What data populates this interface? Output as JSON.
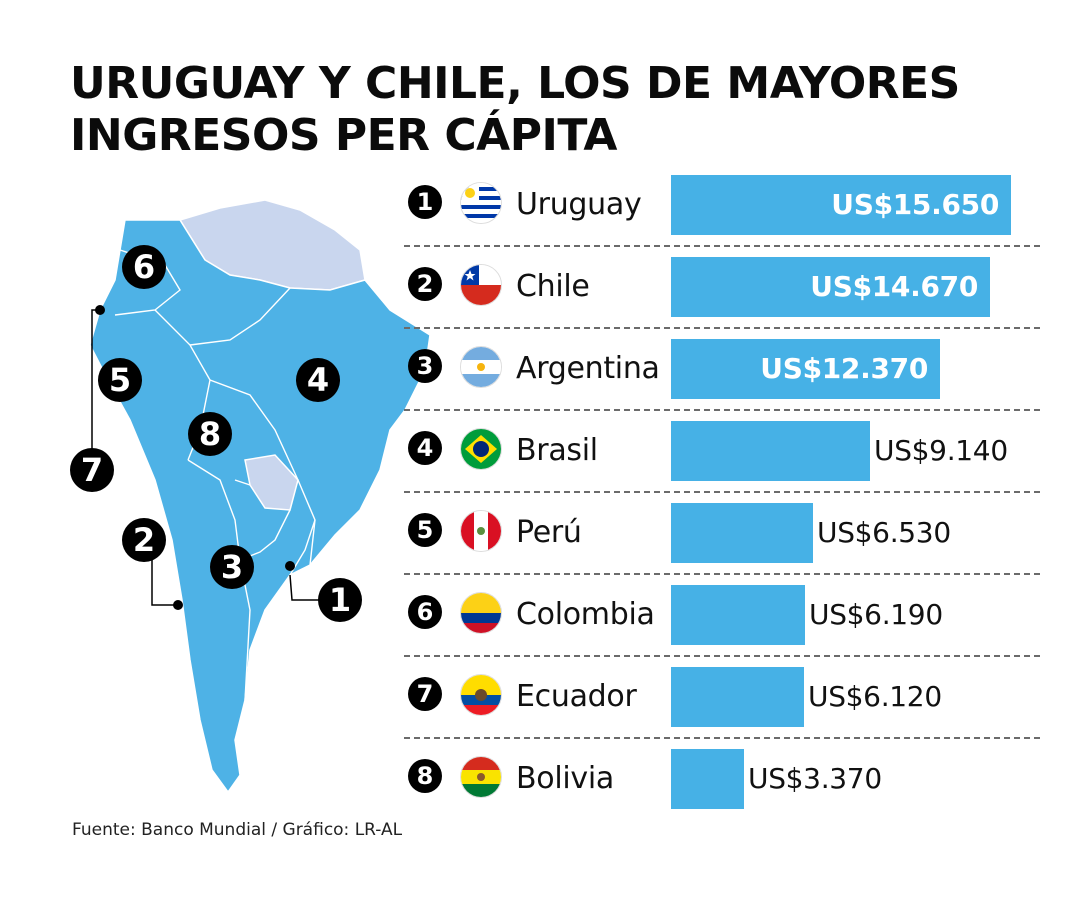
{
  "title_lines": [
    "URUGUAY Y CHILE, LOS DE MAYORES",
    "INGRESOS PER CÁPITA"
  ],
  "source": "Fuente: Banco Mundial / Gráfico: LR-AL",
  "colors": {
    "bar": "#46b1e6",
    "land": "#4eb2e6",
    "other_land": "#c9d6ee"
  },
  "chart_data": {
    "type": "bar",
    "orientation": "horizontal",
    "title": "URUGUAY Y CHILE, LOS DE MAYORES INGRESOS PER CÁPITA",
    "categories": [
      "Uruguay",
      "Chile",
      "Argentina",
      "Brasil",
      "Perú",
      "Colombia",
      "Ecuador",
      "Bolivia"
    ],
    "ranks": [
      "1",
      "2",
      "3",
      "4",
      "5",
      "6",
      "7",
      "8"
    ],
    "values": [
      15650,
      14670,
      12370,
      9140,
      6530,
      6190,
      6120,
      3370
    ],
    "labels": [
      "US$15.650",
      "US$14.670",
      "US$12.370",
      "US$9.140",
      "US$6.530",
      "US$6.190",
      "US$6.120",
      "US$3.370"
    ],
    "label_inside": [
      true,
      true,
      true,
      false,
      false,
      false,
      false,
      false
    ],
    "flags": [
      "uruguay-flag-icon",
      "chile-flag-icon",
      "argentina-flag-icon",
      "brazil-flag-icon",
      "peru-flag-icon",
      "colombia-flag-icon",
      "ecuador-flag-icon",
      "bolivia-flag-icon"
    ],
    "xlim": [
      0,
      15650
    ]
  },
  "map_labels": [
    "6",
    "5",
    "7",
    "4",
    "8",
    "2",
    "3",
    "1"
  ]
}
